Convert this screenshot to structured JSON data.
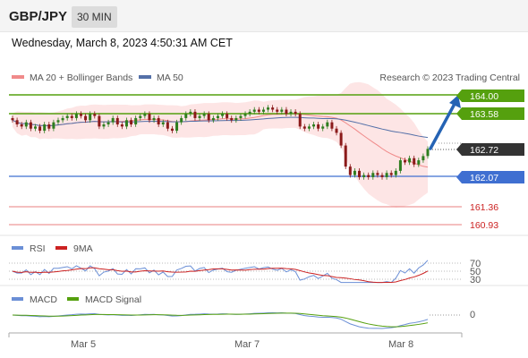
{
  "header": {
    "pair": "GBP/JPY",
    "timeframe": "30 MIN"
  },
  "datetime": "Wednesday, March 8, 2023 4:50:31 AM CET",
  "legend": {
    "ma20": "MA 20 + Bollinger Bands",
    "ma50": "MA 50",
    "copyright": "Research © 2023 Trading Central"
  },
  "colors": {
    "up": "#2e7d1f",
    "down": "#8b1a1a",
    "ma20": "#f08a8a",
    "ma50": "#5470a8",
    "green_level": "#55a00e",
    "blue_level": "#3f6fd1",
    "red_level": "#e05555",
    "current": "#333333",
    "band": "#fde0e0",
    "arrow": "#2563b4",
    "rsi": "#6b8fd6",
    "rsi_ma": "#cc2222",
    "macd": "#6b8fd6",
    "macd_signal": "#55a00e"
  },
  "levels": {
    "r2": "164.00",
    "r1": "163.58",
    "current": "162.72",
    "s1": "162.07",
    "s2": "161.36",
    "s3": "160.93"
  },
  "rsi_panel": {
    "rsi_label": "RSI",
    "ma_label": "9MA",
    "ticks": [
      "70",
      "50",
      "30"
    ]
  },
  "macd_panel": {
    "macd_label": "MACD",
    "signal_label": "MACD Signal",
    "ticks": [
      "0"
    ]
  },
  "x_axis": {
    "labels": [
      "Mar 5",
      "Mar 7",
      "Mar 8"
    ]
  },
  "chart_data": {
    "type": "candlestick",
    "price_levels": [
      164.0,
      163.58,
      162.72,
      162.07,
      161.36,
      160.93
    ],
    "x_labels": [
      "Mar 5",
      "Mar 7",
      "Mar 8"
    ],
    "closes": [
      163.4,
      163.3,
      163.25,
      163.35,
      163.2,
      163.25,
      163.15,
      163.3,
      163.2,
      163.35,
      163.4,
      163.45,
      163.5,
      163.45,
      163.55,
      163.5,
      163.4,
      163.55,
      163.5,
      163.25,
      163.3,
      163.35,
      163.45,
      163.3,
      163.25,
      163.4,
      163.3,
      163.45,
      163.5,
      163.55,
      163.4,
      163.45,
      163.3,
      163.35,
      163.2,
      163.15,
      163.35,
      163.45,
      163.55,
      163.6,
      163.45,
      163.5,
      163.55,
      163.4,
      163.45,
      163.5,
      163.55,
      163.45,
      163.4,
      163.45,
      163.5,
      163.55,
      163.6,
      163.65,
      163.6,
      163.65,
      163.7,
      163.65,
      163.6,
      163.65,
      163.55,
      163.6,
      163.55,
      163.25,
      163.2,
      163.25,
      163.3,
      163.2,
      163.25,
      163.35,
      163.2,
      163.1,
      162.8,
      162.3,
      162.1,
      162.2,
      162.05,
      162.1,
      162.05,
      162.15,
      162.1,
      162.05,
      162.15,
      162.1,
      162.2,
      162.45,
      162.4,
      162.5,
      162.35,
      162.45,
      162.55,
      162.72
    ]
  }
}
